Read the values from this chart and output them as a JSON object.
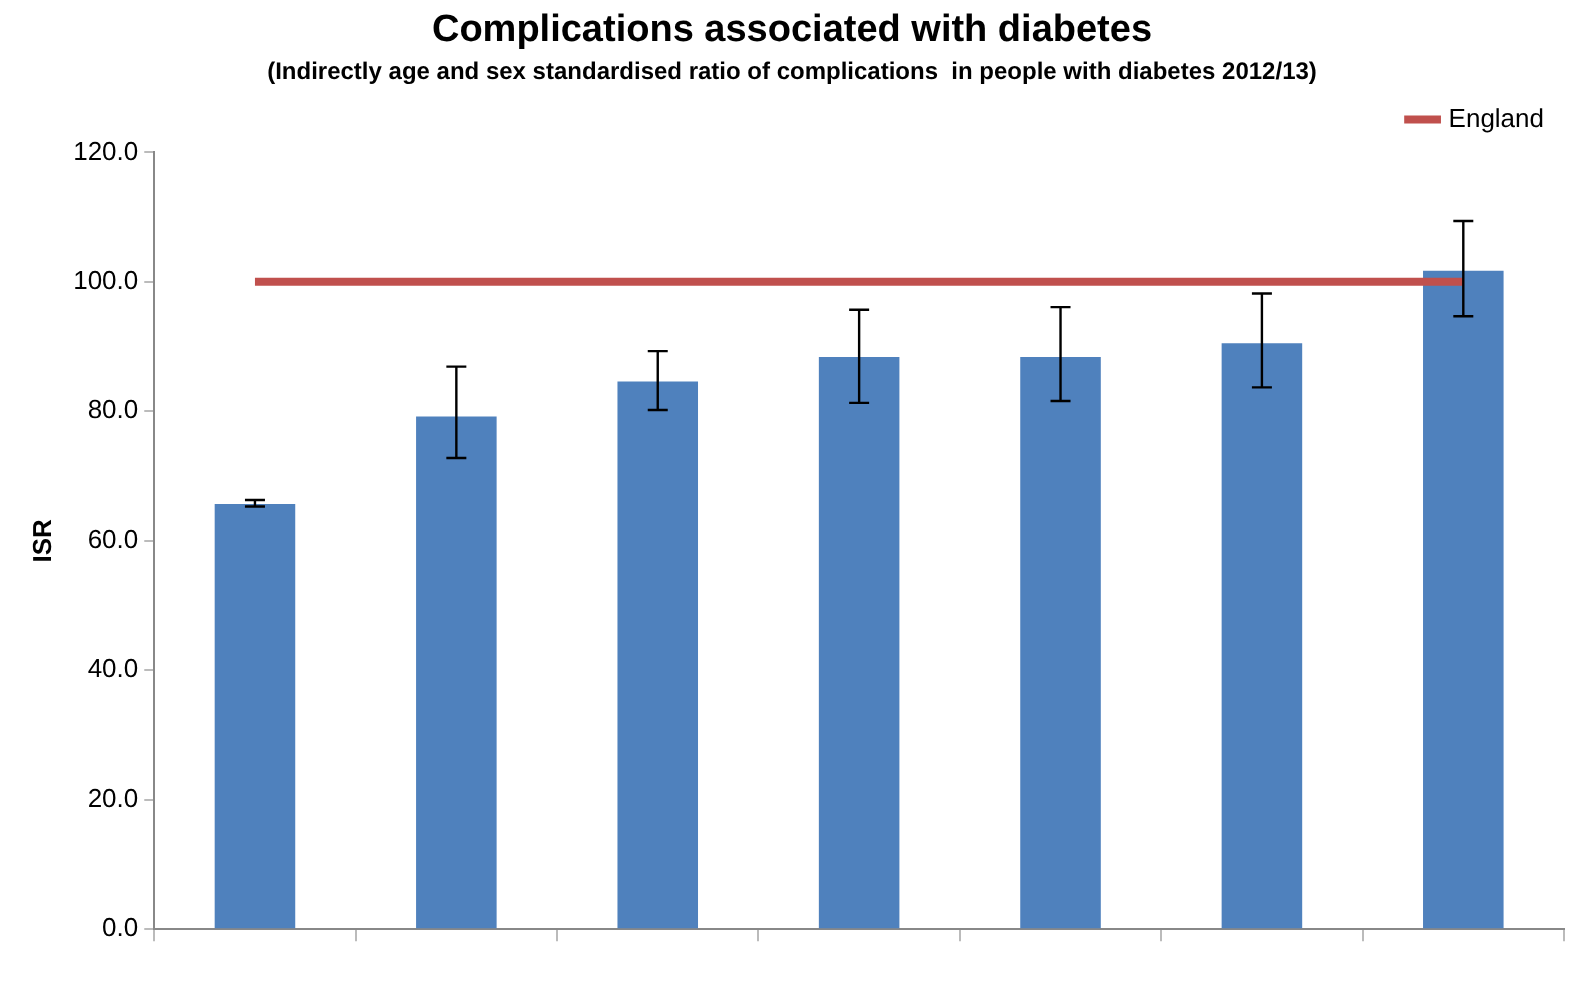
{
  "chart_data": {
    "type": "bar",
    "title": "Complications associated with diabetes",
    "subtitle": "(Indirectly age and sex standardised ratio of complications  in people with diabetes 2012/13)",
    "ylabel": "ISR",
    "categories": [
      null,
      null,
      null,
      null,
      null,
      null,
      null
    ],
    "series": [
      {
        "color": "#4f81bd",
        "values": [
          65.7,
          79.2,
          84.6,
          88.4,
          88.4,
          90.5,
          101.7
        ],
        "errors": [
          [
            65.3,
            66.3
          ],
          [
            72.8,
            86.9
          ],
          [
            80.2,
            89.3
          ],
          [
            81.3,
            95.7
          ],
          [
            81.6,
            96.1
          ],
          [
            83.7,
            98.2
          ],
          [
            94.7,
            109.4
          ]
        ]
      },
      {
        "type": "line",
        "name": "England",
        "color": "#c0504d",
        "values": [
          100,
          100,
          100,
          100,
          100,
          100,
          100
        ]
      }
    ],
    "ylim": [
      0,
      120
    ],
    "yticks": [
      {
        "value": 0,
        "label": "0.0"
      },
      {
        "value": 20,
        "label": "20.0"
      },
      {
        "value": 40,
        "label": "40.0"
      },
      {
        "value": 60,
        "label": "60.0"
      },
      {
        "value": 80,
        "label": "80.0"
      },
      {
        "value": 100,
        "label": "100.0"
      },
      {
        "value": 120,
        "label": "120.0"
      }
    ],
    "grid": false,
    "legend": "top right",
    "marker": "none"
  }
}
